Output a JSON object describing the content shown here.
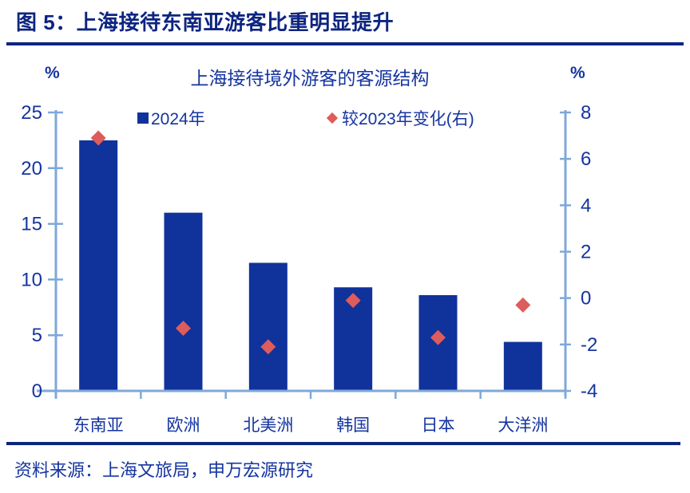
{
  "header": {
    "title": "图 5：上海接待东南亚游客比重明显提升"
  },
  "chart": {
    "title": "上海接待境外游客的客源结构",
    "left_axis_unit": "%",
    "right_axis_unit": "%",
    "legend": [
      {
        "label": "2024年",
        "marker": "square-icon"
      },
      {
        "label": "较2023年变化(右)",
        "marker": "diamond-icon"
      }
    ],
    "colors": {
      "bar": "#10329B",
      "point": "#DD5C5C",
      "axis": "#7FA8D8",
      "text": "#1534A0",
      "header": "#0D2580"
    }
  },
  "chart_data": {
    "type": "bar",
    "title": "上海接待境外游客的客源结构",
    "categories": [
      "东南亚",
      "欧洲",
      "北美洲",
      "韩国",
      "日本",
      "大洋洲"
    ],
    "series": [
      {
        "name": "2024年",
        "type": "bar",
        "axis": "left",
        "values": [
          22.5,
          16.0,
          11.5,
          9.3,
          8.6,
          4.4
        ]
      },
      {
        "name": "较2023年变化(右)",
        "type": "scatter",
        "marker": "diamond",
        "axis": "right",
        "values": [
          6.9,
          -1.3,
          -2.1,
          -0.1,
          -1.7,
          -0.3
        ]
      }
    ],
    "left_axis": {
      "label": "%",
      "range": [
        0,
        25
      ],
      "ticks": [
        0,
        5,
        10,
        15,
        20,
        25
      ]
    },
    "right_axis": {
      "label": "%",
      "range": [
        -4,
        8
      ],
      "ticks": [
        -4,
        -2,
        0,
        2,
        4,
        6,
        8
      ]
    },
    "grid": false,
    "legend_position": "top"
  },
  "footer": {
    "source": "资料来源：上海文旅局，申万宏源研究"
  }
}
